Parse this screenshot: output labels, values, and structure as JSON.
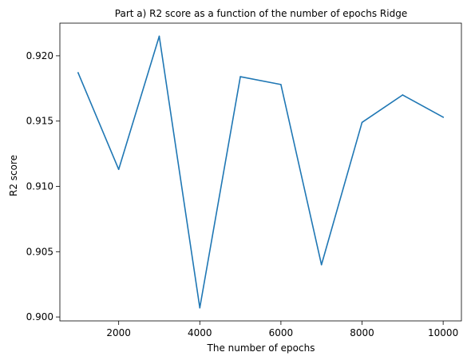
{
  "chart_data": {
    "type": "line",
    "title": "Part a) R2 score as a function of the number of epochs Ridge",
    "xlabel": "The number of epochs",
    "ylabel": "R2 score",
    "xlim": [
      550,
      10450
    ],
    "ylim": [
      0.8997,
      0.9225
    ],
    "xticks": [
      2000,
      4000,
      6000,
      8000,
      10000
    ],
    "xtick_labels": [
      "2000",
      "4000",
      "6000",
      "8000",
      "10000"
    ],
    "yticks": [
      0.9,
      0.905,
      0.91,
      0.915,
      0.92
    ],
    "ytick_labels": [
      "0.900",
      "0.905",
      "0.910",
      "0.915",
      "0.920"
    ],
    "grid": false,
    "legend": false,
    "series": [
      {
        "color": "#1f77b4",
        "x": [
          1000,
          2000,
          3000,
          4000,
          5000,
          6000,
          7000,
          8000,
          9000,
          10000
        ],
        "values": [
          0.9187,
          0.9113,
          0.9215,
          0.9007,
          0.9184,
          0.9178,
          0.904,
          0.9149,
          0.917,
          0.9153
        ]
      }
    ]
  }
}
